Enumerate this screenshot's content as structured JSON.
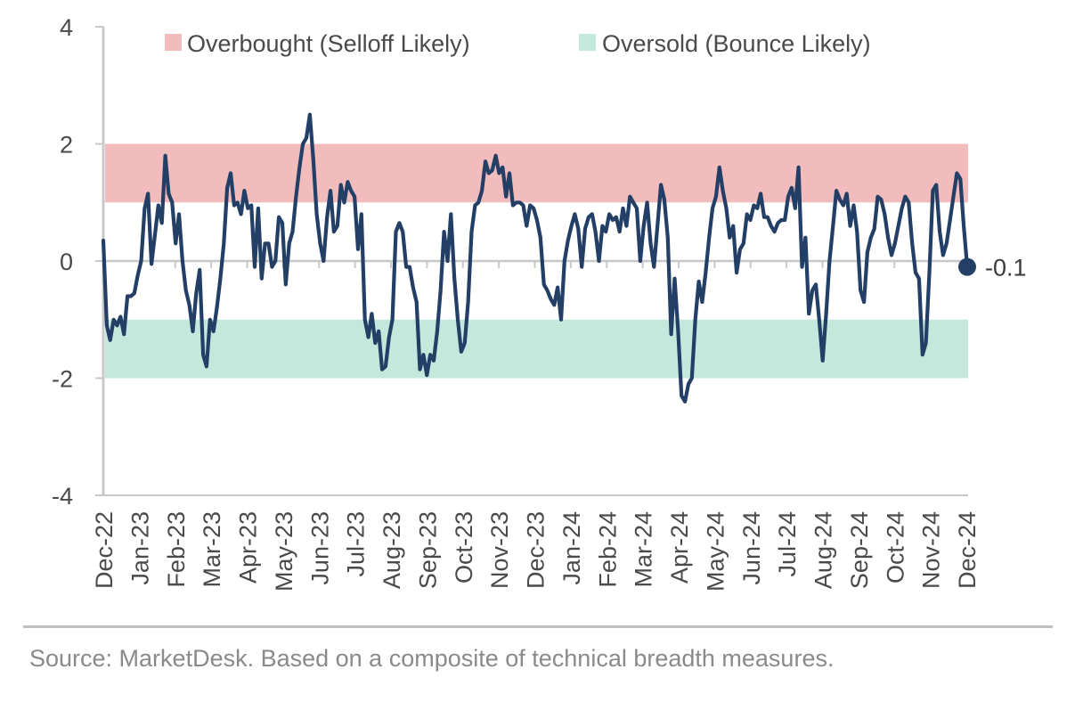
{
  "colors": {
    "line": "#233f66",
    "overbought_band": "#f2bcbc",
    "oversold_band": "#c5e8dc",
    "axis": "#c8c8c8"
  },
  "legend": {
    "overbought": "Overbought (Selloff Likely)",
    "oversold": "Oversold (Bounce Likely)"
  },
  "source": "Source: MarketDesk. Based on a composite of technical breadth measures.",
  "chart_data": {
    "type": "line",
    "title": "",
    "xlabel": "",
    "ylabel": "",
    "ylim": [
      -4,
      4
    ],
    "y_ticks": [
      4,
      2,
      0,
      -2,
      -4
    ],
    "y_tick_labels": [
      "4",
      "2",
      "0",
      "-2",
      "-4"
    ],
    "x_tick_labels": [
      "Dec-22",
      "Jan-23",
      "Feb-23",
      "Mar-23",
      "Apr-23",
      "May-23",
      "Jun-23",
      "Jul-23",
      "Aug-23",
      "Sep-23",
      "Oct-23",
      "Nov-23",
      "Dec-23",
      "Jan-24",
      "Feb-24",
      "Mar-24",
      "Apr-24",
      "May-24",
      "Jun-24",
      "Jul-24",
      "Aug-24",
      "Sep-24",
      "Oct-24",
      "Nov-24",
      "Dec-24"
    ],
    "bands": [
      {
        "name": "Overbought (Selloff Likely)",
        "from": 1,
        "to": 2
      },
      {
        "name": "Oversold (Bounce Likely)",
        "from": -2,
        "to": -1
      }
    ],
    "end_label": "-0.1",
    "series": [
      {
        "values": [
          0.35,
          -1.1,
          -1.35,
          -1.0,
          -1.1,
          -0.95,
          -1.25,
          -0.6,
          -0.6,
          -0.55,
          -0.25,
          0.0,
          0.9,
          1.15,
          -0.05,
          0.45,
          0.95,
          0.65,
          1.8,
          1.15,
          1.0,
          0.3,
          0.8,
          0.0,
          -0.5,
          -0.75,
          -1.2,
          -0.55,
          -0.15,
          -1.6,
          -1.8,
          -1.0,
          -1.2,
          -0.8,
          -0.3,
          0.3,
          1.25,
          1.5,
          0.95,
          1.0,
          0.8,
          1.2,
          0.9,
          0.95,
          -0.1,
          0.9,
          -0.3,
          0.3,
          0.3,
          -0.1,
          0.0,
          0.75,
          0.65,
          -0.4,
          0.3,
          0.5,
          1.1,
          1.6,
          2.0,
          2.1,
          2.5,
          1.75,
          0.8,
          0.3,
          0.0,
          0.75,
          1.2,
          0.5,
          0.6,
          1.3,
          1.0,
          1.35,
          1.2,
          1.1,
          0.2,
          0.8,
          -1.0,
          -1.3,
          -0.9,
          -1.4,
          -1.2,
          -1.85,
          -1.8,
          -1.3,
          -1.0,
          0.5,
          0.65,
          0.5,
          -0.1,
          -0.1,
          -0.45,
          -0.7,
          -1.85,
          -1.6,
          -1.95,
          -1.6,
          -1.7,
          -1.2,
          -0.5,
          0.5,
          0.0,
          0.8,
          -0.3,
          -1.0,
          -1.55,
          -1.4,
          -0.7,
          0.5,
          0.95,
          1.0,
          1.2,
          1.7,
          1.5,
          1.55,
          1.8,
          1.5,
          1.6,
          1.1,
          1.5,
          0.95,
          1.0,
          1.0,
          0.95,
          0.6,
          0.95,
          0.9,
          0.7,
          0.4,
          -0.4,
          -0.5,
          -0.65,
          -0.75,
          -0.45,
          -1.0,
          0.0,
          0.35,
          0.6,
          0.8,
          0.55,
          -0.1,
          0.55,
          0.75,
          0.8,
          0.5,
          0.0,
          0.6,
          0.5,
          0.8,
          0.7,
          0.75,
          0.5,
          0.9,
          0.6,
          1.1,
          1.0,
          0.9,
          0.0,
          0.6,
          1.0,
          0.3,
          -0.1,
          0.6,
          1.3,
          1.05,
          0.4,
          -1.25,
          -0.3,
          -1.2,
          -2.3,
          -2.4,
          -2.1,
          -2.0,
          -1.0,
          -0.35,
          -0.7,
          -0.2,
          0.4,
          0.9,
          1.1,
          1.6,
          1.2,
          0.9,
          0.4,
          0.6,
          -0.2,
          0.2,
          0.3,
          0.8,
          0.7,
          0.95,
          0.9,
          1.15,
          0.75,
          0.75,
          0.6,
          0.5,
          0.65,
          0.7,
          0.7,
          1.1,
          1.25,
          0.9,
          1.6,
          -0.1,
          0.4,
          -0.9,
          -0.5,
          -0.4,
          -1.0,
          -1.7,
          -0.9,
          0.0,
          0.6,
          1.2,
          1.05,
          0.95,
          1.15,
          0.6,
          0.95,
          0.5,
          -0.5,
          -0.7,
          0.15,
          0.4,
          0.55,
          1.1,
          1.05,
          0.8,
          0.4,
          0.1,
          0.3,
          0.6,
          0.9,
          1.1,
          1.0,
          0.3,
          -0.2,
          -0.3,
          -1.6,
          -1.4,
          -0.2,
          1.2,
          1.3,
          0.5,
          0.1,
          0.3,
          0.7,
          1.1,
          1.5,
          1.4,
          0.6,
          -0.1
        ]
      }
    ]
  }
}
